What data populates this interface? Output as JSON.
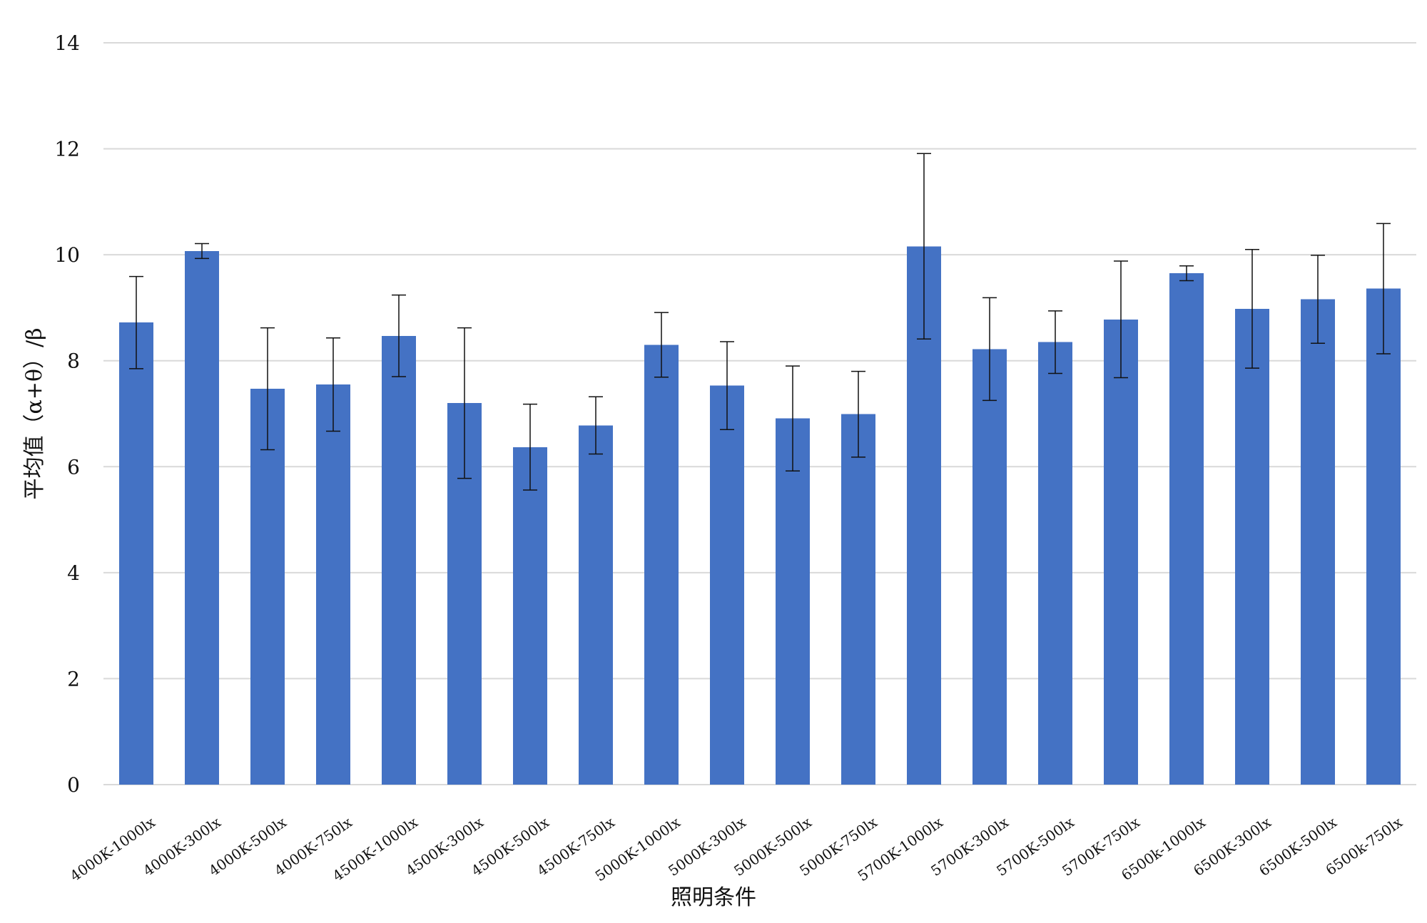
{
  "chart_data": {
    "type": "bar",
    "title": "",
    "xlabel": "照明条件",
    "ylabel": "平均值（α+θ）/β",
    "categories": [
      "4000K-1000lx",
      "4000K-300lx",
      "4000K-500lx",
      "4000K-750lx",
      "4500K-1000lx",
      "4500K-300lx",
      "4500K-500lx",
      "4500K-750lx",
      "5000K-1000lx",
      "5000K-300lx",
      "5000K-500lx",
      "5000K-750lx",
      "5700K-1000lx",
      "5700K-300lx",
      "5700K-500lx",
      "5700K-750lx",
      "6500k-1000lx",
      "6500K-300lx",
      "6500K-500lx",
      "6500k-750lx"
    ],
    "values": [
      8.72,
      10.07,
      7.47,
      7.55,
      8.47,
      7.2,
      6.37,
      6.78,
      8.3,
      7.53,
      6.91,
      6.99,
      10.16,
      8.22,
      8.35,
      8.78,
      9.65,
      8.98,
      9.16,
      9.36
    ],
    "error": [
      0.87,
      0.14,
      1.15,
      0.88,
      0.77,
      1.42,
      0.81,
      0.54,
      0.61,
      0.83,
      0.99,
      0.81,
      1.75,
      0.97,
      0.59,
      1.1,
      0.14,
      1.12,
      0.83,
      1.23
    ],
    "ylim": [
      0,
      14
    ],
    "yticks": [
      0,
      2,
      4,
      6,
      8,
      10,
      12,
      14
    ],
    "grid": true,
    "legend": "none",
    "colors": {
      "bar": "#4472c4",
      "grid": "#d9d9d9",
      "error_bar": "#111111",
      "text": "#111111"
    }
  }
}
